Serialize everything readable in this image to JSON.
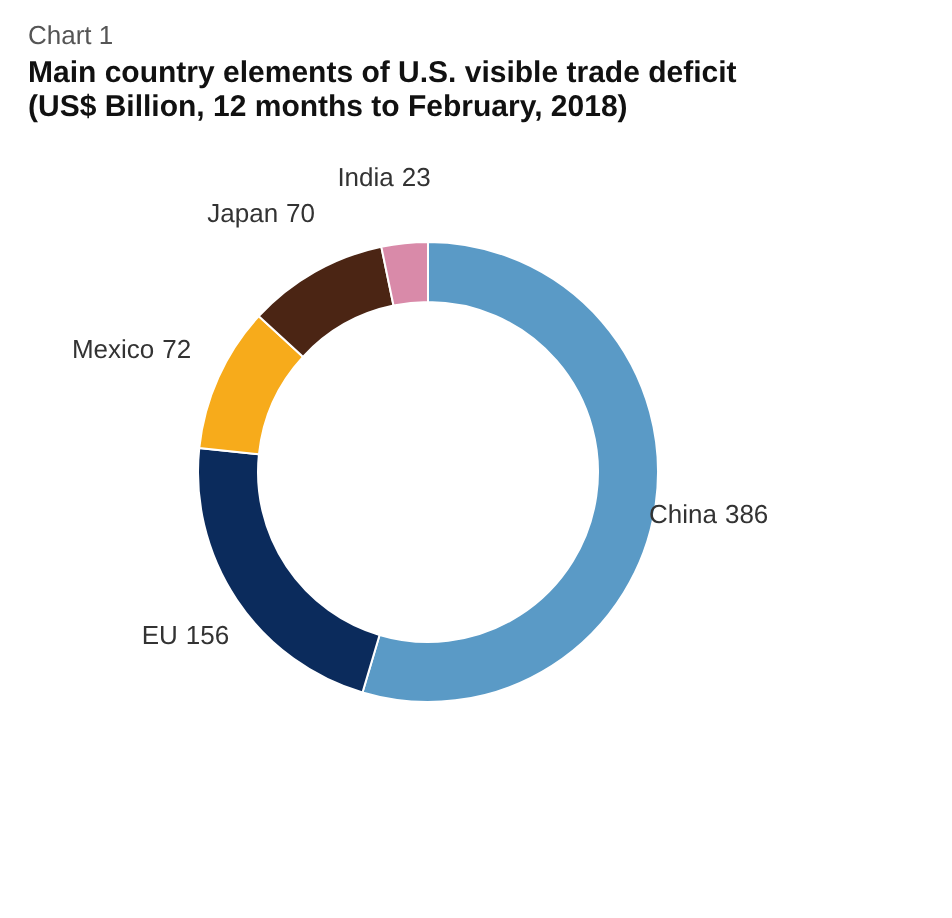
{
  "chart_data": {
    "type": "donut",
    "title": "Main country elements of U.S. visible trade deficit (US$ Billion, 12 months to February, 2018)",
    "annotations": [
      "Chart 1"
    ],
    "categories": [
      "China",
      "EU",
      "Mexico",
      "Japan",
      "India"
    ],
    "values": [
      386,
      156,
      72,
      70,
      23
    ],
    "colors": [
      "#5a9ac6",
      "#0b2b5c",
      "#f7ab1b",
      "#4b2514",
      "#d98aa9"
    ],
    "data_labels": true,
    "legend": false
  }
}
